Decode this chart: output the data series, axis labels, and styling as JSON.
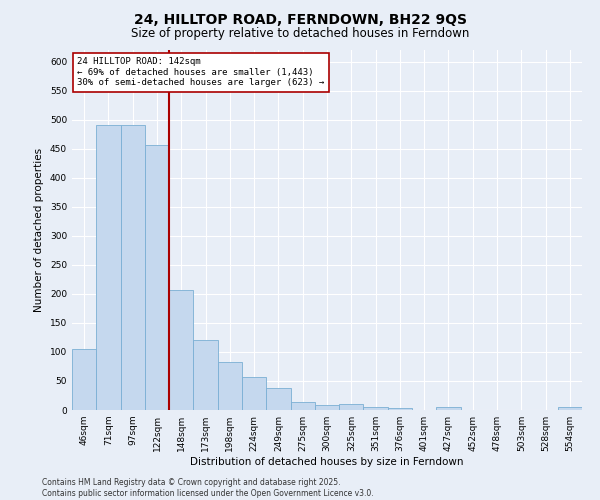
{
  "title": "24, HILLTOP ROAD, FERNDOWN, BH22 9QS",
  "subtitle": "Size of property relative to detached houses in Ferndown",
  "xlabel": "Distribution of detached houses by size in Ferndown",
  "ylabel": "Number of detached properties",
  "categories": [
    "46sqm",
    "71sqm",
    "97sqm",
    "122sqm",
    "148sqm",
    "173sqm",
    "198sqm",
    "224sqm",
    "249sqm",
    "275sqm",
    "300sqm",
    "325sqm",
    "351sqm",
    "376sqm",
    "401sqm",
    "427sqm",
    "452sqm",
    "478sqm",
    "503sqm",
    "528sqm",
    "554sqm"
  ],
  "values": [
    105,
    490,
    490,
    457,
    207,
    121,
    82,
    57,
    38,
    13,
    8,
    10,
    5,
    3,
    0,
    5,
    0,
    0,
    0,
    0,
    6
  ],
  "bar_color": "#c5d8ee",
  "bar_edge_color": "#7aafd4",
  "vline_color": "#aa0000",
  "annotation_text": "24 HILLTOP ROAD: 142sqm\n← 69% of detached houses are smaller (1,443)\n30% of semi-detached houses are larger (623) →",
  "annotation_box_color": "#ffffff",
  "annotation_box_edge": "#aa0000",
  "ylim": [
    0,
    620
  ],
  "yticks": [
    0,
    50,
    100,
    150,
    200,
    250,
    300,
    350,
    400,
    450,
    500,
    550,
    600
  ],
  "footer": "Contains HM Land Registry data © Crown copyright and database right 2025.\nContains public sector information licensed under the Open Government Licence v3.0.",
  "background_color": "#e8eef7",
  "plot_bg_color": "#e8eef7",
  "title_fontsize": 10,
  "subtitle_fontsize": 8.5,
  "axis_label_fontsize": 7.5,
  "tick_fontsize": 6.5,
  "annotation_fontsize": 6.5,
  "footer_fontsize": 5.5
}
